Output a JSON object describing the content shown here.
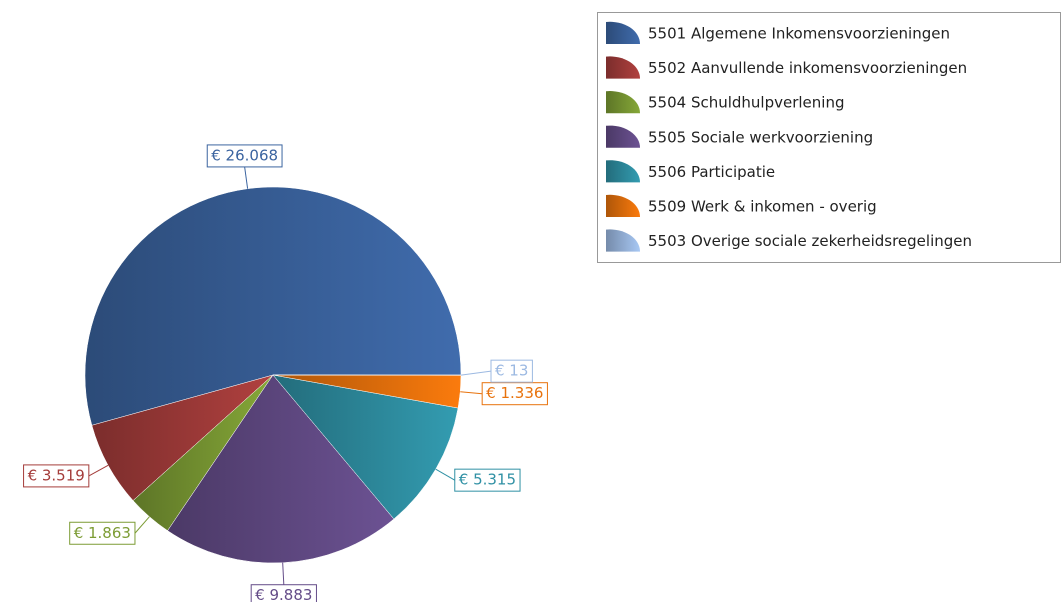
{
  "chart_data": {
    "type": "pie",
    "categories": [
      "5501 Algemene Inkomensvoorzieningen",
      "5502 Aanvullende inkomensvoorzieningen",
      "5504 Schuldhulpverlening",
      "5505 Sociale werkvoorziening",
      "5506 Participatie",
      "5509 Werk & inkomen - overig",
      "5503 Overige sociale zekerheidsregelingen"
    ],
    "values": [
      26068,
      3519,
      1863,
      9883,
      5315,
      1336,
      13
    ],
    "value_labels": [
      "€ 26.068",
      "€ 3.519",
      "€ 1.863",
      "€ 9.883",
      "€ 5.315",
      "€ 1.336",
      "€ 13"
    ],
    "colors": [
      "#3b64a0",
      "#a43c3a",
      "#7c9c34",
      "#644c88",
      "#2f90a4",
      "#e8720c",
      "#9cb9e2"
    ]
  }
}
